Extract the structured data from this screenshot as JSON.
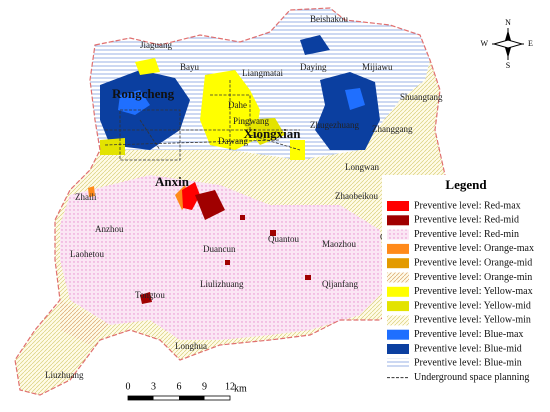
{
  "places": [
    "Beishakou",
    "Jiaguang",
    "Bayu",
    "Liangmatai",
    "Daying",
    "Mijiawu",
    "Shuangtang",
    "Dahe",
    "Pingwang",
    "Zhugezhuang",
    "Zhanggang",
    "Dawang",
    "Longwan",
    "Zhaili",
    "Zhaobeikou",
    "Gougezhuang",
    "Anzhou",
    "Laohetou",
    "Duancun",
    "Quantou",
    "Maozhou",
    "Liulizhuang",
    "Qijanfang",
    "Tongtou",
    "Longhua",
    "Liuzhuang"
  ],
  "towns": [
    "Rongcheng",
    "Xiongxian",
    "Anxin"
  ],
  "compass": {
    "north": "N",
    "east": "E",
    "south": "S",
    "west": "W"
  },
  "scale_bar": {
    "ticks": [
      "0",
      "3",
      "6",
      "9",
      "12"
    ],
    "unit": "km"
  },
  "legend": {
    "title": "Legend",
    "items": [
      {
        "label": "Preventive level: Red-max",
        "color": "#ff0000",
        "style": "solid"
      },
      {
        "label": "Preventive level: Red-mid",
        "color": "#a00000",
        "style": "solid"
      },
      {
        "label": "Preventive level: Red-min",
        "color": "#e68ccd",
        "style": "dots"
      },
      {
        "label": "Preventive level: Orange-max",
        "color": "#ff8a1a",
        "style": "solid"
      },
      {
        "label": "Preventive level: Orange-mid",
        "color": "#e39a00",
        "style": "solid"
      },
      {
        "label": "Preventive level: Orange-min",
        "color": "#d9a46a",
        "style": "hatch"
      },
      {
        "label": "Preventive level: Yellow-max",
        "color": "#ffff00",
        "style": "solid"
      },
      {
        "label": "Preventive level: Yellow-mid",
        "color": "#e3e300",
        "style": "solid"
      },
      {
        "label": "Preventive level: Yellow-min",
        "color": "#d8cf7a",
        "style": "hatch"
      },
      {
        "label": "Preventive level: Blue-max",
        "color": "#1f6fff",
        "style": "solid"
      },
      {
        "label": "Preventive level: Blue-mid",
        "color": "#0b3fa0",
        "style": "solid"
      },
      {
        "label": "Preventive level: Blue-min",
        "color": "#7f9fe0",
        "style": "lines"
      },
      {
        "label": "Underground space planning",
        "color": "#333333",
        "style": "dashed"
      }
    ]
  }
}
